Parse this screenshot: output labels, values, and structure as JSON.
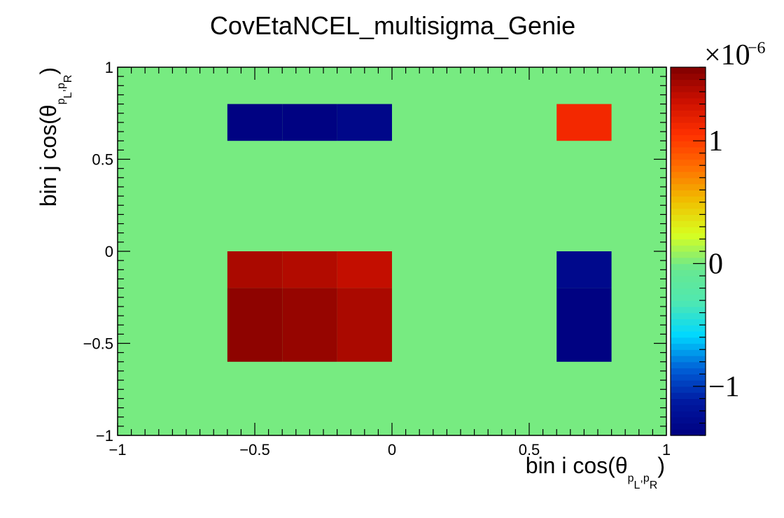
{
  "chart_data": {
    "type": "heatmap",
    "title": "CovEtaNCEL_multisigma_Genie",
    "xlabel": {
      "main": "bin i cos(θ",
      "sub1": "p",
      "sub1b": "L",
      "sub2": "p",
      "sub2b": "R",
      "close": ")"
    },
    "ylabel": {
      "main": "bin j cos(θ",
      "sub1": "p",
      "sub1b": "L",
      "sub2": "p",
      "sub2b": "R",
      "close": ")"
    },
    "xlim": [
      -1,
      1
    ],
    "ylim": [
      -1,
      1
    ],
    "x_ticks": [
      -1,
      -0.5,
      0,
      0.5,
      1
    ],
    "x_tick_labels": [
      "−1",
      "−0.5",
      "0",
      "0.5",
      "1"
    ],
    "y_ticks": [
      -1,
      -0.5,
      0,
      0.5,
      1
    ],
    "y_tick_labels": [
      "−1",
      "−0.5",
      "0",
      "0.5",
      "1"
    ],
    "zlim": [
      -1.4,
      1.6
    ],
    "z_exponent_label": "×10",
    "z_exponent": "−6",
    "z_ticks": [
      -1,
      0,
      1
    ],
    "z_tick_labels": [
      "−1",
      "0",
      "1"
    ],
    "background_value": 0,
    "bin_edges_x": [
      -1,
      -0.8,
      -0.6,
      -0.4,
      -0.2,
      0,
      0.2,
      0.4,
      0.6,
      0.8,
      1
    ],
    "bin_edges_y": [
      -1,
      -0.8,
      -0.6,
      -0.4,
      -0.2,
      0,
      0.2,
      0.4,
      0.6,
      0.8,
      1
    ],
    "cells": [
      {
        "x": [
          -0.6,
          -0.4
        ],
        "y": [
          0.6,
          0.8
        ],
        "value": -1.38
      },
      {
        "x": [
          -0.4,
          -0.2
        ],
        "y": [
          0.6,
          0.8
        ],
        "value": -1.38
      },
      {
        "x": [
          -0.2,
          0.0
        ],
        "y": [
          0.6,
          0.8
        ],
        "value": -1.32
      },
      {
        "x": [
          0.6,
          0.8
        ],
        "y": [
          0.6,
          0.8
        ],
        "value": 1.12
      },
      {
        "x": [
          -0.6,
          -0.4
        ],
        "y": [
          -0.2,
          0.0
        ],
        "value": 1.45
      },
      {
        "x": [
          -0.4,
          -0.2
        ],
        "y": [
          -0.2,
          0.0
        ],
        "value": 1.42
      },
      {
        "x": [
          -0.2,
          0.0
        ],
        "y": [
          -0.2,
          0.0
        ],
        "value": 1.36
      },
      {
        "x": [
          -0.6,
          -0.4
        ],
        "y": [
          -0.6,
          -0.2
        ],
        "value": 1.55
      },
      {
        "x": [
          -0.4,
          -0.2
        ],
        "y": [
          -0.6,
          -0.2
        ],
        "value": 1.52
      },
      {
        "x": [
          -0.2,
          0.0
        ],
        "y": [
          -0.6,
          -0.2
        ],
        "value": 1.45
      },
      {
        "x": [
          0.6,
          0.8
        ],
        "y": [
          -0.2,
          0.0
        ],
        "value": -1.3
      },
      {
        "x": [
          0.6,
          0.8
        ],
        "y": [
          -0.6,
          -0.2
        ],
        "value": -1.38
      }
    ],
    "colormap": [
      "#000080",
      "#0018a0",
      "#0060d8",
      "#00d8ff",
      "#50e8b0",
      "#68e890",
      "#d8ff20",
      "#f0c000",
      "#ff7000",
      "#ff3000",
      "#cc1000",
      "#800000"
    ]
  }
}
